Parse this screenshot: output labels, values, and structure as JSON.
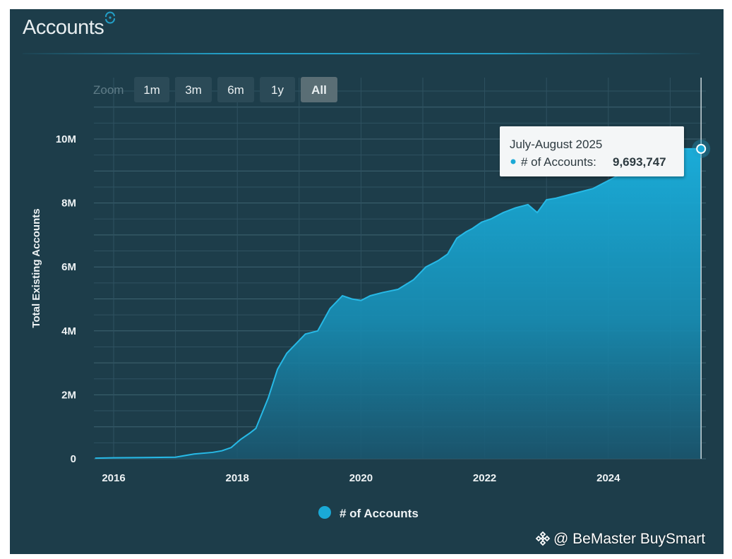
{
  "panel": {
    "title": "Accounts"
  },
  "zoom": {
    "label": "Zoom",
    "buttons": [
      {
        "label": "1m",
        "active": false
      },
      {
        "label": "3m",
        "active": false
      },
      {
        "label": "6m",
        "active": false
      },
      {
        "label": "1y",
        "active": false
      },
      {
        "label": "All",
        "active": true
      }
    ]
  },
  "tooltip": {
    "title": "July-August 2025",
    "series_label": "# of Accounts:",
    "value": "9,693,747"
  },
  "legend": {
    "label": "# of Accounts"
  },
  "watermark": {
    "text": "@ BeMaster BuySmart"
  },
  "colors": {
    "background": "#1d3d4a",
    "series": "#1aa9d6",
    "accent": "#23a0c8"
  },
  "chart_data": {
    "type": "area",
    "title": "Accounts",
    "ylabel": "Total Existing Accounts",
    "xlabel": "",
    "y_tick_labels": [
      "0",
      "2M",
      "4M",
      "6M",
      "8M",
      "10M"
    ],
    "x_tick_labels": [
      "2016",
      "2018",
      "2020",
      "2022",
      "2024"
    ],
    "xlim": [
      2015.7,
      2025.55
    ],
    "ylim": [
      0,
      12000000
    ],
    "grid": true,
    "legend_position": "bottom",
    "series": [
      {
        "name": "# of Accounts",
        "x": [
          2015.7,
          2016.0,
          2016.5,
          2017.0,
          2017.3,
          2017.6,
          2017.75,
          2017.9,
          2018.05,
          2018.2,
          2018.3,
          2018.5,
          2018.65,
          2018.8,
          2018.95,
          2019.1,
          2019.3,
          2019.5,
          2019.7,
          2019.85,
          2020.0,
          2020.15,
          2020.35,
          2020.6,
          2020.85,
          2021.05,
          2021.25,
          2021.4,
          2021.55,
          2021.7,
          2021.8,
          2021.95,
          2022.1,
          2022.3,
          2022.5,
          2022.7,
          2022.85,
          2023.0,
          2023.15,
          2023.35,
          2023.55,
          2023.75,
          2023.9,
          2024.05,
          2024.2,
          2024.35,
          2024.5,
          2024.65,
          2024.8,
          2024.95,
          2025.1,
          2025.25,
          2025.4,
          2025.5
        ],
        "values": [
          20000,
          30000,
          40000,
          50000,
          150000,
          200000,
          250000,
          350000,
          600000,
          800000,
          950000,
          1900000,
          2800000,
          3300000,
          3600000,
          3900000,
          4000000,
          4700000,
          5100000,
          5000000,
          4950000,
          5100000,
          5200000,
          5300000,
          5600000,
          6000000,
          6200000,
          6400000,
          6900000,
          7100000,
          7200000,
          7400000,
          7500000,
          7700000,
          7850000,
          7950000,
          7700000,
          8100000,
          8150000,
          8250000,
          8350000,
          8450000,
          8600000,
          8750000,
          8900000,
          9100000,
          9250000,
          9450000,
          9550000,
          9650000,
          9700000,
          9693747,
          9693747,
          9693747
        ]
      }
    ]
  }
}
